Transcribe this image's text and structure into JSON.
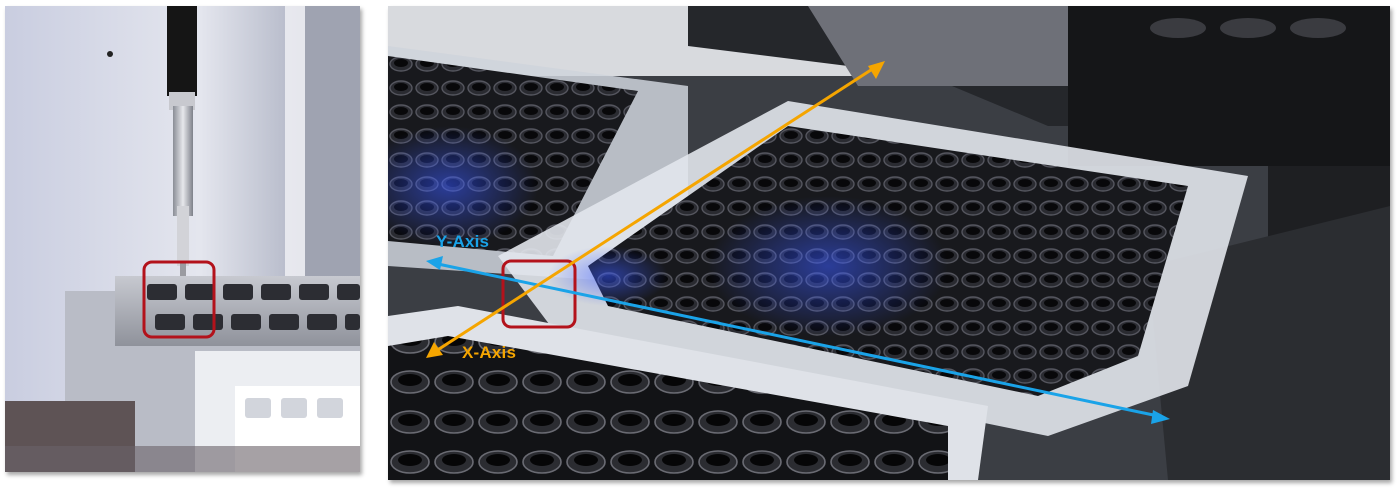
{
  "annotations": {
    "y_axis_label": "Y-Axis",
    "x_axis_label": "X-Axis"
  },
  "colors": {
    "y_axis": "#1aa3e8",
    "x_axis": "#f5a500",
    "highlight_box": "#b3121b"
  }
}
